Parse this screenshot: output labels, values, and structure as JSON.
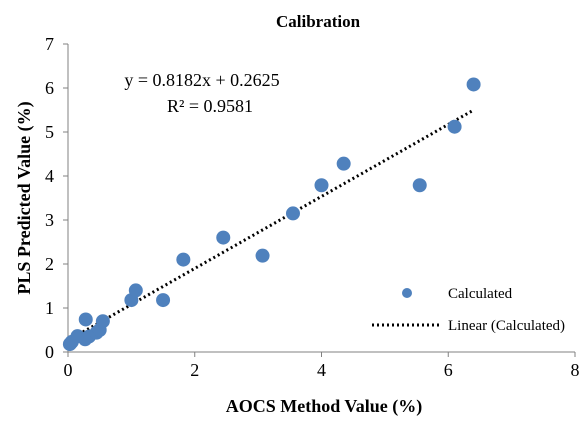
{
  "chart_data": {
    "type": "scatter",
    "title": "Calibration",
    "xlabel": "AOCS Method Value (%)",
    "ylabel": "PLS Predicted Value (%)",
    "xlim": [
      0,
      8
    ],
    "ylim": [
      0,
      7
    ],
    "xticks": [
      "0",
      "2",
      "4",
      "6",
      "8"
    ],
    "yticks": [
      "0",
      "1",
      "2",
      "3",
      "4",
      "5",
      "6",
      "7"
    ],
    "grid": false,
    "legend_position": "bottom-right",
    "series": [
      {
        "name": "Calculated",
        "color": "#4f81bd",
        "x": [
          0.03,
          0.06,
          0.15,
          0.27,
          0.28,
          0.33,
          0.45,
          0.5,
          0.55,
          1.0,
          1.07,
          1.5,
          1.82,
          2.45,
          3.07,
          3.55,
          4.0,
          4.35,
          5.55,
          6.1,
          6.4
        ],
        "y": [
          0.18,
          0.23,
          0.36,
          0.29,
          0.74,
          0.35,
          0.44,
          0.5,
          0.7,
          1.18,
          1.4,
          1.18,
          2.1,
          2.6,
          2.19,
          3.15,
          3.79,
          4.28,
          3.79,
          5.12,
          6.08
        ]
      }
    ],
    "trendline": {
      "name": "Linear (Calculated)",
      "slope": 0.8182,
      "intercept": 0.2625,
      "x_range": [
        0.03,
        6.4
      ],
      "style": "dotted"
    },
    "annotations": {
      "equation": "y = 0.8182x + 0.2625",
      "r_squared": "R² = 0.9581"
    }
  }
}
